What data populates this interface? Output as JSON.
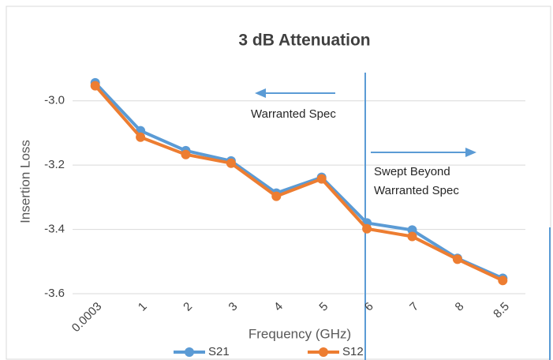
{
  "chart_data": {
    "type": "line",
    "title": "3 dB Attenuation",
    "x_label": "Frequency (GHz)",
    "y_label": "Insertion Loss",
    "categories": [
      "0.0003",
      "1",
      "2",
      "3",
      "4",
      "5",
      "6",
      "7",
      "8",
      "8.5"
    ],
    "series": [
      {
        "name": "S21",
        "color": "#5b9bd5",
        "values": [
          -2.944,
          -3.093,
          -3.155,
          -3.187,
          -3.287,
          -3.238,
          -3.38,
          -3.402,
          -3.49,
          -3.552
        ]
      },
      {
        "name": "S12",
        "color": "#ed7d31",
        "values": [
          -2.953,
          -3.113,
          -3.167,
          -3.194,
          -3.297,
          -3.243,
          -3.398,
          -3.422,
          -3.493,
          -3.559
        ]
      }
    ],
    "ylim": [
      -3.6,
      -2.9
    ],
    "yticks": [
      {
        "value": -3,
        "label": "-3.0"
      },
      -3.2,
      -3.4,
      -3.6
    ],
    "grid": true,
    "annotations": [
      "Warranted Spec",
      "Swept Beyond",
      "Warranted Spec"
    ]
  }
}
